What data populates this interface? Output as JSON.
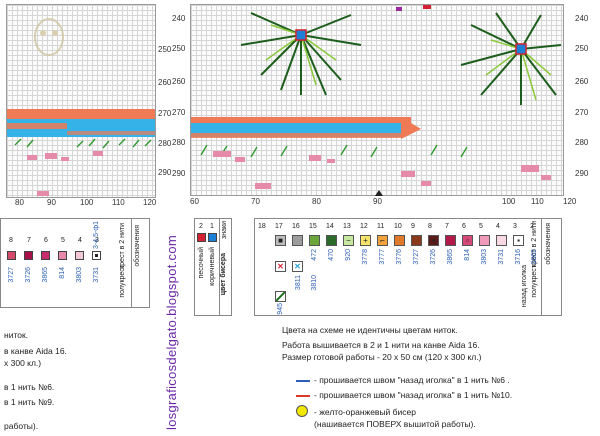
{
  "left_panel": {
    "col_labels": [
      "80",
      "90",
      "100",
      "110",
      "120"
    ],
    "row_labels": [
      "250",
      "260",
      "270",
      "280",
      "290"
    ]
  },
  "right_panel": {
    "col_labels": [
      "60",
      "70",
      "80",
      "90",
      "100",
      "110",
      "120"
    ],
    "row_labels": [
      "240",
      "250",
      "260",
      "270",
      "280",
      "290"
    ],
    "marker_label": "60"
  },
  "watermark": "losgraficosdelgato.blogspot.com",
  "left_legend": {
    "header": [
      "обозначения",
      "крест в 2 нити",
      "полукрест"
    ],
    "numbers": [
      "1",
      "2",
      "3",
      "4",
      "5",
      "6",
      "7",
      "8"
    ],
    "codes": [
      "B5200",
      "3716",
      "3731",
      "3803",
      "814",
      "3865",
      "3726",
      "3727"
    ],
    "partial_row": "3-4.5-ф1"
  },
  "bead_legend": {
    "title": "цвет бисера",
    "col1": "знаки",
    "numbers": [
      "2",
      "1"
    ],
    "labels": [
      "песочный",
      "коричневый"
    ],
    "colors": [
      "#d42030",
      "#1e7fd6"
    ]
  },
  "right_legend": {
    "header": [
      "обозначения",
      "крест в 2 нити",
      "полукрест",
      "назад иголка"
    ],
    "numbers": [
      "1",
      "2",
      "3",
      "4",
      "5",
      "6",
      "7",
      "8",
      "9",
      "10",
      "11",
      "12",
      "13",
      "14",
      "15",
      "16",
      "17",
      "18"
    ],
    "codes": [
      "3865",
      "3716",
      "3731",
      "3803",
      "814",
      "3865",
      "3726",
      "3727",
      "3776",
      "3777",
      "3778",
      "920",
      "470",
      "472",
      "3346",
      "3347",
      "3348",
      "310"
    ],
    "extra_codes": [
      "3811",
      "3810",
      "3828",
      "945"
    ]
  },
  "notes": {
    "line1": "Цвета на схеме не идентичны цветам ниток.",
    "line2": "Работа вышивается в 2 и 1 нити на канве Aida 16.",
    "line3": "Размер готовой работы - 20 х 50 см (120 х 300 кл.)",
    "line4": "- прошивается швом \"назад иголка\" в 1 нить №6 .",
    "line5": "- прошивается швом \"назад иголка\" в 1 нить №10.",
    "line6": "- желто-оранжевый бисер",
    "line7": "(нашивается ПОВЕРХ вышитой работы).",
    "left_frag1": "ниток.",
    "left_frag2": "в канве Aida 16.",
    "left_frag3": "х 300 кл.)",
    "left_frag4": "в 1 нить №6.",
    "left_frag5": "в 1 нить №9.",
    "left_frag6": "работы)."
  },
  "colors": {
    "blue_line": "#2c5fb3",
    "red_line": "#d93a2a",
    "bead_yellow": "#f3e800",
    "water": "#35b3e8",
    "salmon": "#f07a55",
    "grass": "#2e9a2e",
    "pine_dark": "#1d5e1d",
    "pine_light": "#8bc83a",
    "rose": "#e58aa8"
  }
}
